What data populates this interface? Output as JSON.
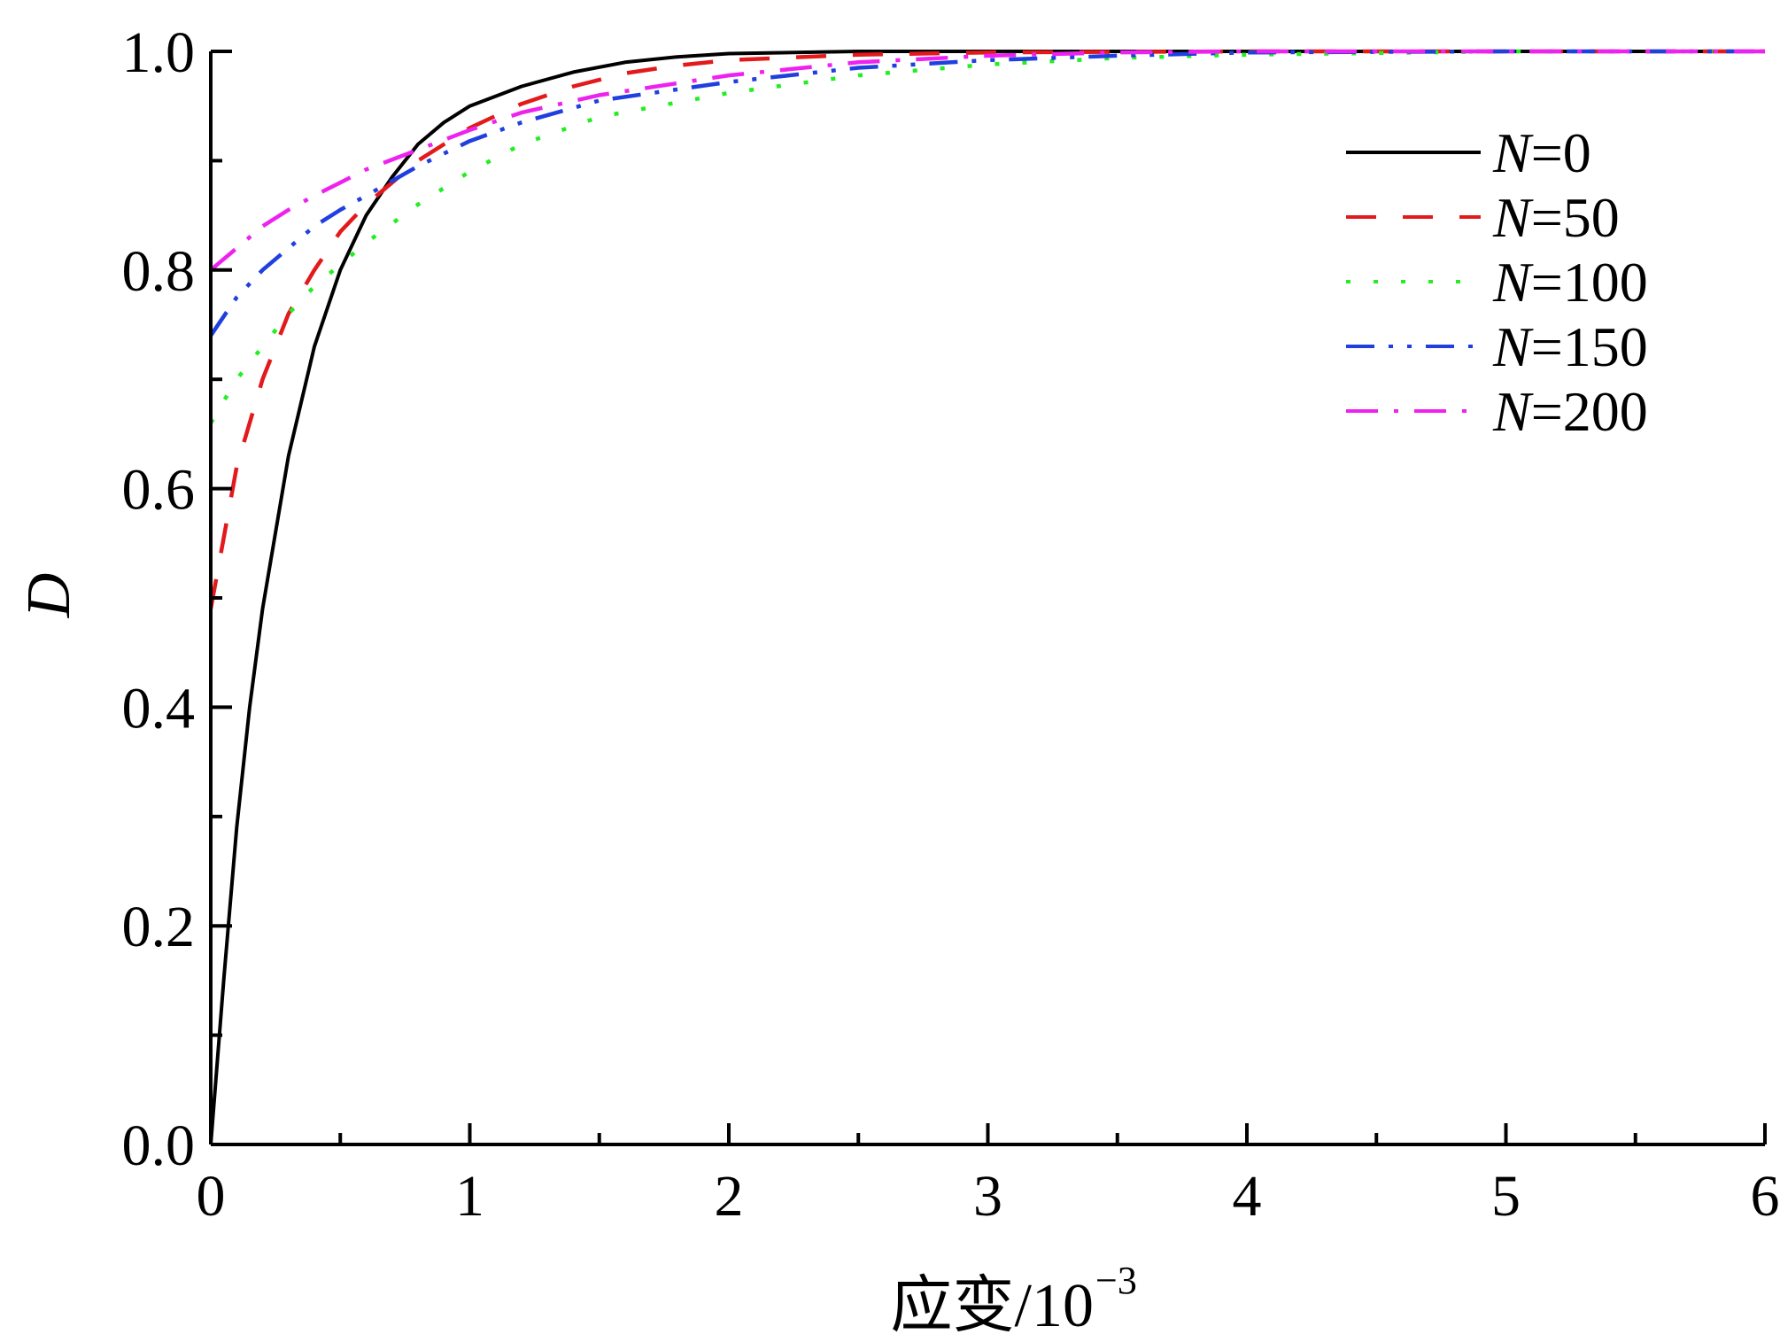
{
  "chart_data": {
    "type": "line",
    "title": "",
    "xlabel": "应变/10",
    "xlabel_exponent": "−3",
    "ylabel": "D",
    "xlim": [
      0,
      6
    ],
    "ylim": [
      0,
      1.0
    ],
    "x_ticks": [
      "0",
      "1",
      "2",
      "3",
      "4",
      "5",
      "6"
    ],
    "y_ticks": [
      "0.0",
      "0.2",
      "0.4",
      "0.6",
      "0.8",
      "1.0"
    ],
    "grid": false,
    "legend_position": "top-right",
    "series": [
      {
        "name": "N=0",
        "legend_symbol": "N",
        "legend_value": "=0",
        "color": "#000000",
        "dash": "solid",
        "x": [
          0,
          0.05,
          0.1,
          0.15,
          0.2,
          0.3,
          0.4,
          0.5,
          0.6,
          0.7,
          0.8,
          0.9,
          1.0,
          1.2,
          1.4,
          1.6,
          1.8,
          2.0,
          2.5,
          3.0,
          4.0,
          5.0,
          6.0
        ],
        "y": [
          0.0,
          0.15,
          0.29,
          0.4,
          0.49,
          0.63,
          0.73,
          0.8,
          0.85,
          0.885,
          0.915,
          0.935,
          0.95,
          0.968,
          0.981,
          0.99,
          0.995,
          0.998,
          1.0,
          1.0,
          1.0,
          1.0,
          1.0
        ]
      },
      {
        "name": "N=50",
        "legend_symbol": "N",
        "legend_value": "=50",
        "color": "#e31a1c",
        "dash": "long-dash",
        "x": [
          0,
          0.1,
          0.2,
          0.3,
          0.4,
          0.5,
          0.6,
          0.7,
          0.8,
          0.9,
          1.0,
          1.2,
          1.4,
          1.6,
          1.8,
          2.0,
          2.5,
          3.0,
          4.0,
          5.0,
          6.0
        ],
        "y": [
          0.49,
          0.62,
          0.7,
          0.76,
          0.8,
          0.835,
          0.86,
          0.88,
          0.9,
          0.915,
          0.93,
          0.952,
          0.968,
          0.98,
          0.987,
          0.992,
          0.997,
          0.999,
          1.0,
          1.0,
          1.0
        ]
      },
      {
        "name": "N=100",
        "legend_symbol": "N",
        "legend_value": "=100",
        "color": "#22ee22",
        "dash": "dot",
        "x": [
          0,
          0.1,
          0.2,
          0.3,
          0.4,
          0.5,
          0.6,
          0.8,
          1.0,
          1.2,
          1.5,
          2.0,
          2.5,
          3.0,
          3.5,
          4.0,
          5.0,
          6.0
        ],
        "y": [
          0.66,
          0.7,
          0.73,
          0.76,
          0.785,
          0.805,
          0.825,
          0.86,
          0.89,
          0.915,
          0.94,
          0.962,
          0.978,
          0.988,
          0.994,
          0.997,
          1.0,
          1.0
        ]
      },
      {
        "name": "N=150",
        "legend_symbol": "N",
        "legend_value": "=150",
        "color": "#1f3fe0",
        "dash": "dash-dot-dot",
        "x": [
          0,
          0.1,
          0.2,
          0.3,
          0.4,
          0.5,
          0.6,
          0.8,
          1.0,
          1.2,
          1.5,
          2.0,
          2.5,
          3.0,
          3.5,
          4.0,
          5.0,
          6.0
        ],
        "y": [
          0.74,
          0.775,
          0.8,
          0.82,
          0.84,
          0.855,
          0.868,
          0.895,
          0.918,
          0.935,
          0.955,
          0.972,
          0.985,
          0.992,
          0.996,
          0.999,
          1.0,
          1.0
        ]
      },
      {
        "name": "N=200",
        "legend_symbol": "N",
        "legend_value": "=200",
        "color": "#ee22ee",
        "dash": "dash-dot",
        "x": [
          0,
          0.1,
          0.2,
          0.3,
          0.4,
          0.5,
          0.6,
          0.8,
          1.0,
          1.2,
          1.5,
          2.0,
          2.5,
          3.0,
          3.5,
          4.0,
          5.0,
          6.0
        ],
        "y": [
          0.8,
          0.82,
          0.84,
          0.855,
          0.868,
          0.88,
          0.892,
          0.91,
          0.928,
          0.944,
          0.96,
          0.978,
          0.99,
          0.996,
          0.999,
          1.0,
          1.0,
          1.0
        ]
      }
    ]
  }
}
